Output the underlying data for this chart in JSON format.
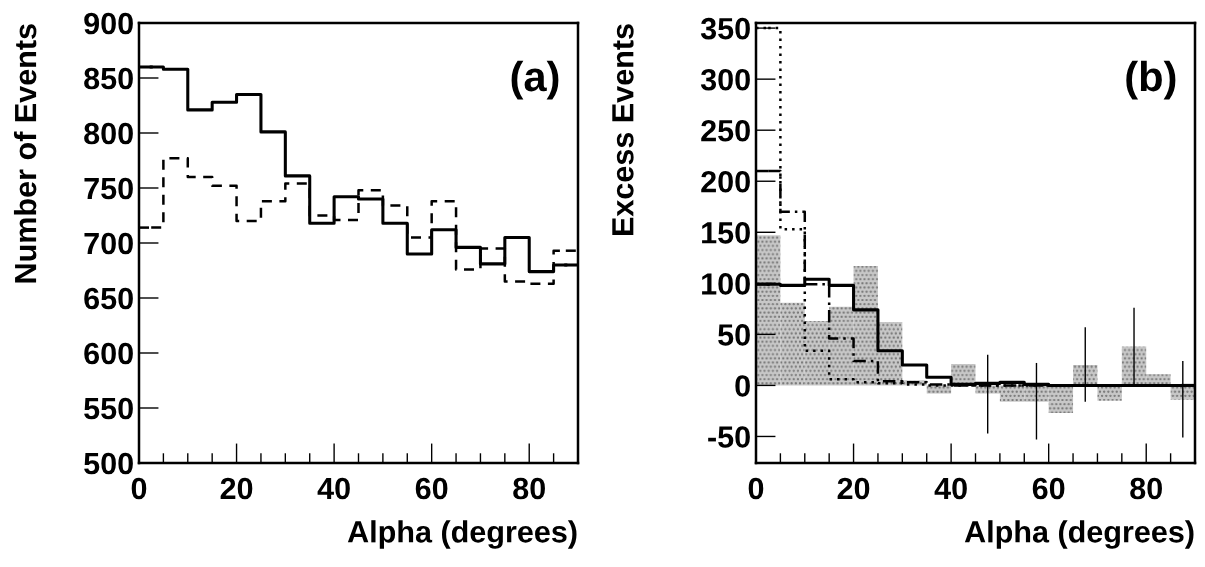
{
  "chart_data": [
    {
      "type": "step",
      "ylabel": "Number of Events",
      "xlabel": "Alpha (degrees)",
      "annotations": [
        "(a)"
      ],
      "x": [
        2.5,
        7.5,
        12.5,
        17.5,
        22.5,
        27.5,
        32.5,
        37.5,
        42.5,
        47.5,
        52.5,
        57.5,
        62.5,
        67.5,
        72.5,
        77.5,
        82.5,
        87.5
      ],
      "xlim": [
        0,
        90
      ],
      "xticks": [
        0,
        20,
        40,
        60,
        80
      ],
      "ylim": [
        500,
        900
      ],
      "yticks": [
        500,
        550,
        600,
        650,
        700,
        750,
        800,
        850,
        900
      ],
      "series": [
        {
          "color": "#000000",
          "line_style": "solid",
          "values": [
            860,
            858,
            821,
            828,
            835,
            801,
            761,
            718,
            742,
            740,
            718,
            690,
            712,
            696,
            681,
            705,
            674,
            680
          ]
        },
        {
          "color": "#000000",
          "line_style": "dashed",
          "values": [
            714,
            777,
            760,
            752,
            720,
            738,
            754,
            725,
            721,
            748,
            734,
            705,
            738,
            676,
            695,
            665,
            663,
            693
          ]
        }
      ]
    },
    {
      "type": "histogram",
      "ylabel": "Excess Events",
      "xlabel": "Alpha (degrees)",
      "annotations": [
        "(b)"
      ],
      "bins": [
        0,
        5,
        10,
        15,
        20,
        25,
        30,
        35,
        40,
        45,
        50,
        55,
        60,
        65,
        70,
        75,
        80,
        85,
        90
      ],
      "xlim": [
        0,
        90
      ],
      "xticks": [
        0,
        20,
        40,
        60,
        80
      ],
      "ylim": [
        -76,
        355
      ],
      "yticks": [
        -50,
        0,
        50,
        100,
        150,
        200,
        250,
        300,
        350
      ],
      "series": [
        {
          "color": "#c8c8c8",
          "values": [
            147,
            81,
            63,
            77,
            117,
            62,
            5,
            -8,
            21,
            -8,
            -16,
            -16,
            -27,
            20,
            -15,
            38,
            11,
            -14
          ],
          "errors": [
            null,
            null,
            null,
            null,
            null,
            null,
            null,
            null,
            null,
            [
              -47,
              30
            ],
            null,
            [
              -53,
              22
            ],
            null,
            [
              -16,
              57
            ],
            null,
            [
              1,
              76
            ],
            null,
            [
              -51,
              24
            ]
          ]
        },
        {
          "type": "step",
          "x": [
            2.5,
            7.5,
            12.5,
            17.5,
            22.5,
            27.5,
            32.5,
            37.5,
            42.5,
            47.5,
            52.5,
            57.5,
            62.5,
            67.5,
            72.5,
            77.5,
            82.5,
            87.5
          ],
          "color": "#000000",
          "line_style": "solid",
          "values": [
            99,
            98,
            104,
            98,
            74,
            34,
            20,
            8,
            1,
            2,
            3,
            1,
            0,
            0,
            0,
            0,
            0,
            0
          ]
        },
        {
          "type": "step",
          "x": [
            2.5,
            7.5,
            12.5,
            17.5,
            22.5,
            27.5,
            32.5,
            37.5,
            42.5,
            47.5,
            52.5,
            57.5,
            62.5,
            67.5,
            72.5,
            77.5,
            82.5,
            87.5
          ],
          "color": "#000000",
          "line_style": "dotted",
          "values": [
            350,
            153,
            34,
            6,
            3,
            2,
            1,
            0,
            0,
            0,
            0,
            0,
            0,
            0,
            0,
            0,
            0,
            0
          ]
        },
        {
          "type": "step",
          "x": [
            2.5,
            7.5,
            12.5,
            17.5,
            22.5,
            27.5,
            32.5,
            37.5,
            42.5,
            47.5,
            52.5,
            57.5,
            62.5,
            67.5,
            72.5,
            77.5,
            82.5,
            87.5
          ],
          "color": "#000000",
          "line_style": "dashdot",
          "values": [
            210,
            170,
            99,
            46,
            24,
            4,
            3,
            1,
            0,
            0,
            0,
            0,
            0,
            0,
            0,
            0,
            0,
            0
          ]
        }
      ]
    }
  ]
}
